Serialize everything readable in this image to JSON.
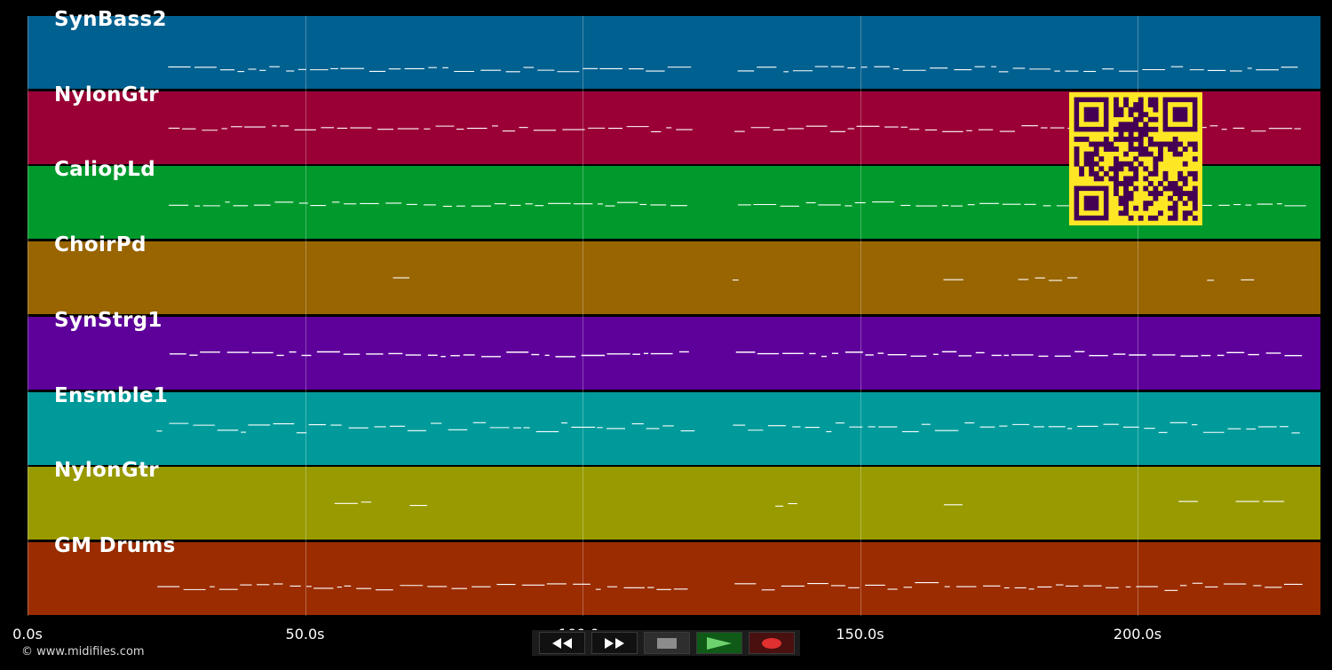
{
  "tracks": [
    {
      "name": "SynBass2",
      "color": "#00608f"
    },
    {
      "name": "NylonGtr",
      "color": "#9a0035"
    },
    {
      "name": "CaliopLd",
      "color": "#009a2c"
    },
    {
      "name": "ChoirPd",
      "color": "#986500"
    },
    {
      "name": "SynStrg1",
      "color": "#5e009a"
    },
    {
      "name": "Ensmble1",
      "color": "#009a9a"
    },
    {
      "name": "NylonGtr",
      "color": "#989a00"
    },
    {
      "name": "GM Drums",
      "color": "#9a2c00"
    }
  ],
  "time_axis": {
    "ticks": [
      "0.0s",
      "50.0s",
      "100.0s",
      "150.0s",
      "200.0s"
    ]
  },
  "copyright": "© www.midifiles.com",
  "controls": [
    {
      "name": "rewind-button",
      "icon": "rewind-icon"
    },
    {
      "name": "fast-forward-button",
      "icon": "fast-forward-icon"
    },
    {
      "name": "stop-button",
      "icon": "stop-icon"
    },
    {
      "name": "play-button",
      "icon": "play-icon"
    },
    {
      "name": "record-button",
      "icon": "record-icon"
    }
  ],
  "qr": {
    "icon": "qr-code-icon",
    "fg": "#440154",
    "bg": "#fde725"
  }
}
